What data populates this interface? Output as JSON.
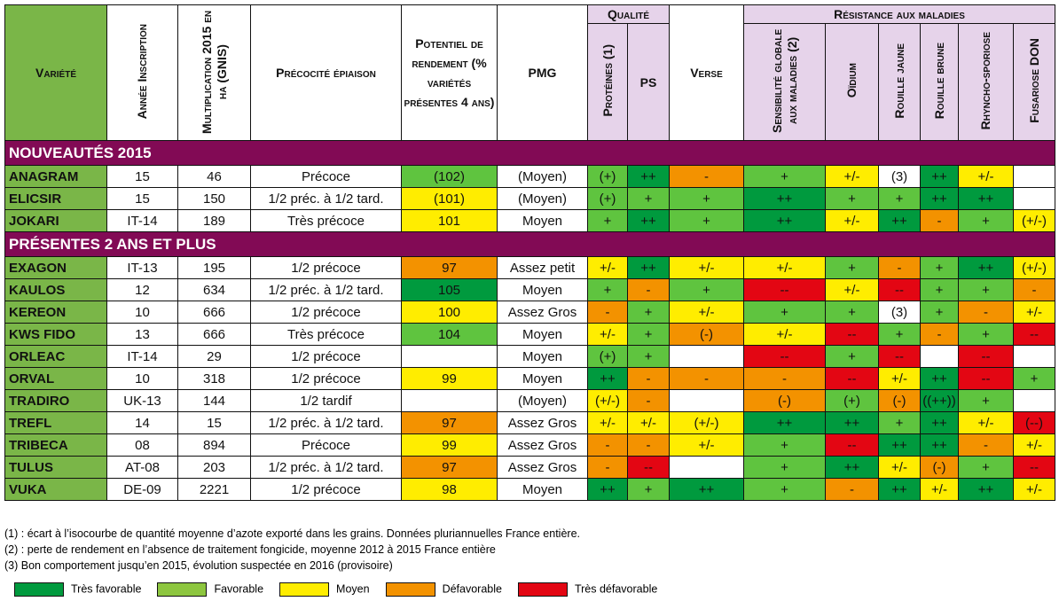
{
  "headers": {
    "variete": "Variété",
    "annee": "Année Inscription",
    "multiplication": "Multiplication 2015 en ha (GNIS)",
    "precocite": "Précocité épiaison",
    "potentiel": "Potentiel de rendement (% variétés présentes 4 ans)",
    "pmg": "PMG",
    "qualite": "Qualité",
    "proteines": "Protéines (1)",
    "ps": "PS",
    "verse": "Verse",
    "resistance": "Résistance aux maladies",
    "sensibilite": "Sensibilité globale aux maladies (2)",
    "oidium": "Oïdium",
    "rouille_jaune": "Rouille jaune",
    "rouille_brune": "Rouille brune",
    "rhyncho": "Rhyncho-sporiose",
    "fusariose": "Fusariose DON"
  },
  "sections": [
    {
      "title": "Nouveautés 2015",
      "rows": [
        [
          "ANAGRAM",
          "15",
          "46",
          "Précoce",
          [
            "(102)",
            "g"
          ],
          "(Moyen)",
          [
            [
              "(+)",
              "g"
            ],
            [
              "++",
              "G"
            ],
            [
              "-",
              "O"
            ],
            [
              "+",
              "g"
            ],
            [
              "+/-",
              "Y"
            ],
            [
              "(3)",
              "W"
            ],
            [
              "++",
              "G"
            ],
            [
              "+/-",
              "Y"
            ],
            [
              "",
              "W"
            ]
          ]
        ],
        [
          "ELICSIR",
          "15",
          "150",
          "1/2 préc. à 1/2 tard.",
          [
            "(101)",
            "Y"
          ],
          "(Moyen)",
          [
            [
              "(+)",
              "g"
            ],
            [
              "+",
              "g"
            ],
            [
              "+",
              "g"
            ],
            [
              "++",
              "G"
            ],
            [
              "+",
              "g"
            ],
            [
              "+",
              "g"
            ],
            [
              "++",
              "G"
            ],
            [
              "++",
              "G"
            ],
            [
              "",
              "W"
            ]
          ]
        ],
        [
          "JOKARI",
          "IT-14",
          "189",
          "Très précoce",
          [
            "101",
            "Y"
          ],
          "Moyen",
          [
            [
              "+",
              "g"
            ],
            [
              "++",
              "G"
            ],
            [
              "+",
              "g"
            ],
            [
              "++",
              "G"
            ],
            [
              "+/-",
              "Y"
            ],
            [
              "++",
              "G"
            ],
            [
              "-",
              "O"
            ],
            [
              "+",
              "g"
            ],
            [
              "(+/-)",
              "Y"
            ]
          ]
        ]
      ]
    },
    {
      "title": "Présentes 2 ans et plus",
      "rows": [
        [
          "EXAGON",
          "IT-13",
          "195",
          "1/2 précoce",
          [
            "97",
            "O"
          ],
          "Assez petit",
          [
            [
              "+/-",
              "Y"
            ],
            [
              "++",
              "G"
            ],
            [
              "+/-",
              "Y"
            ],
            [
              "+/-",
              "Y"
            ],
            [
              "+",
              "g"
            ],
            [
              "-",
              "O"
            ],
            [
              "+",
              "g"
            ],
            [
              "++",
              "G"
            ],
            [
              "(+/-)",
              "Y"
            ]
          ]
        ],
        [
          "KAULOS",
          "12",
          "634",
          "1/2 préc. à 1/2 tard.",
          [
            "105",
            "G"
          ],
          "Moyen",
          [
            [
              "+",
              "g"
            ],
            [
              "-",
              "O"
            ],
            [
              "+",
              "g"
            ],
            [
              "--",
              "R"
            ],
            [
              "+/-",
              "Y"
            ],
            [
              "--",
              "R"
            ],
            [
              "+",
              "g"
            ],
            [
              "+",
              "g"
            ],
            [
              "-",
              "O"
            ]
          ]
        ],
        [
          "KEREON",
          "10",
          "666",
          "1/2 précoce",
          [
            "100",
            "Y"
          ],
          "Assez Gros",
          [
            [
              "-",
              "O"
            ],
            [
              "+",
              "g"
            ],
            [
              "+/-",
              "Y"
            ],
            [
              "+",
              "g"
            ],
            [
              "+",
              "g"
            ],
            [
              "(3)",
              "W"
            ],
            [
              "+",
              "g"
            ],
            [
              "-",
              "O"
            ],
            [
              "+/-",
              "Y"
            ]
          ]
        ],
        [
          "KWS FIDO",
          "13",
          "666",
          "Très précoce",
          [
            "104",
            "g"
          ],
          "Moyen",
          [
            [
              "+/-",
              "Y"
            ],
            [
              "+",
              "g"
            ],
            [
              "(-)",
              "O"
            ],
            [
              "+/-",
              "Y"
            ],
            [
              "--",
              "R"
            ],
            [
              "+",
              "g"
            ],
            [
              "-",
              "O"
            ],
            [
              "+",
              "g"
            ],
            [
              "--",
              "R"
            ]
          ]
        ],
        [
          "ORLEAC",
          "IT-14",
          "29",
          "1/2 précoce",
          [
            "",
            "W"
          ],
          "Moyen",
          [
            [
              "(+)",
              "g"
            ],
            [
              "+",
              "g"
            ],
            [
              "",
              "W"
            ],
            [
              "--",
              "R"
            ],
            [
              "+",
              "g"
            ],
            [
              "--",
              "R"
            ],
            [
              "",
              "W"
            ],
            [
              "--",
              "R"
            ],
            [
              "",
              "W"
            ]
          ]
        ],
        [
          "ORVAL",
          "10",
          "318",
          "1/2 précoce",
          [
            "99",
            "Y"
          ],
          "Moyen",
          [
            [
              "++",
              "G"
            ],
            [
              "-",
              "O"
            ],
            [
              "-",
              "O"
            ],
            [
              "-",
              "O"
            ],
            [
              "--",
              "R"
            ],
            [
              "+/-",
              "Y"
            ],
            [
              "++",
              "G"
            ],
            [
              "--",
              "R"
            ],
            [
              "+",
              "g"
            ]
          ]
        ],
        [
          "TRADIRO",
          "UK-13",
          "144",
          "1/2 tardif",
          [
            "",
            "W"
          ],
          "(Moyen)",
          [
            [
              "(+/-)",
              "Y"
            ],
            [
              "-",
              "O"
            ],
            [
              "",
              "W"
            ],
            [
              "(-)",
              "O"
            ],
            [
              "(+)",
              "g"
            ],
            [
              "(-)",
              "O"
            ],
            [
              "((++))",
              "G"
            ],
            [
              "+",
              "g"
            ],
            [
              "",
              "W"
            ]
          ]
        ],
        [
          "TREFL",
          "14",
          "15",
          "1/2 préc. à 1/2 tard.",
          [
            "97",
            "O"
          ],
          "Assez Gros",
          [
            [
              "+/-",
              "Y"
            ],
            [
              "+/-",
              "Y"
            ],
            [
              "(+/-)",
              "Y"
            ],
            [
              "++",
              "G"
            ],
            [
              "++",
              "G"
            ],
            [
              "+",
              "g"
            ],
            [
              "++",
              "G"
            ],
            [
              "+/-",
              "Y"
            ],
            [
              "(--)",
              "R"
            ]
          ]
        ],
        [
          "TRIBECA",
          "08",
          "894",
          "Précoce",
          [
            "99",
            "Y"
          ],
          "Assez Gros",
          [
            [
              "-",
              "O"
            ],
            [
              "-",
              "O"
            ],
            [
              "+/-",
              "Y"
            ],
            [
              "+",
              "g"
            ],
            [
              "--",
              "R"
            ],
            [
              "++",
              "G"
            ],
            [
              "++",
              "G"
            ],
            [
              "-",
              "O"
            ],
            [
              "+/-",
              "Y"
            ]
          ]
        ],
        [
          "TULUS",
          "AT-08",
          "203",
          "1/2 préc. à 1/2 tard.",
          [
            "97",
            "O"
          ],
          "Assez Gros",
          [
            [
              "-",
              "O"
            ],
            [
              "--",
              "R"
            ],
            [
              "",
              "W"
            ],
            [
              "+",
              "g"
            ],
            [
              "++",
              "G"
            ],
            [
              "+/-",
              "Y"
            ],
            [
              "(-)",
              "O"
            ],
            [
              "+",
              "g"
            ],
            [
              "--",
              "R"
            ]
          ]
        ],
        [
          "VUKA",
          "DE-09",
          "2221",
          "1/2 précoce",
          [
            "98",
            "Y"
          ],
          "Moyen",
          [
            [
              "++",
              "G"
            ],
            [
              "+",
              "g"
            ],
            [
              "++",
              "G"
            ],
            [
              "+",
              "g"
            ],
            [
              "-",
              "O"
            ],
            [
              "++",
              "G"
            ],
            [
              "+/-",
              "Y"
            ],
            [
              "++",
              "G"
            ],
            [
              "+/-",
              "Y"
            ]
          ]
        ]
      ]
    }
  ],
  "notes": [
    "(1) : écart à l’isocourbe de quantité moyenne d’azote exporté dans les grains. Données pluriannuelles France entière.",
    "(2) : perte de rendement en l’absence de traitement fongicide, moyenne 2012 à 2015 France entière",
    "(3) Bon comportement jusqu’en 2015, évolution suspectée en 2016 (provisoire)"
  ],
  "legend": [
    {
      "label": "Très favorable",
      "color": "#009a3e"
    },
    {
      "label": "Favorable",
      "color": "#8dc63f"
    },
    {
      "label": "Moyen",
      "color": "#ffed00"
    },
    {
      "label": "Défavorable",
      "color": "#f39200"
    },
    {
      "label": "Très défavorable",
      "color": "#e30613"
    }
  ]
}
